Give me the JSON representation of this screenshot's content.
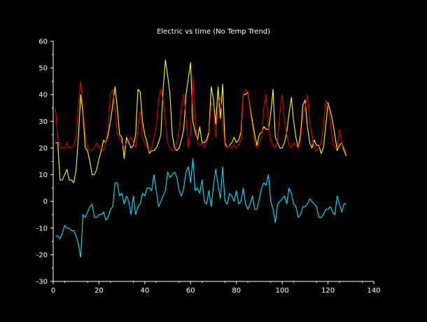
{
  "chart_data": {
    "type": "line",
    "title": "Electric vs time (No Temp Trend)",
    "xlabel": "",
    "ylabel": "",
    "xlim": [
      0,
      140
    ],
    "ylim": [
      -30,
      60
    ],
    "x_ticks": [
      0,
      20,
      40,
      60,
      80,
      100,
      120,
      140
    ],
    "y_ticks": [
      -30,
      -20,
      -10,
      0,
      10,
      20,
      30,
      40,
      50,
      60
    ],
    "grid": false,
    "background_color": "#000000",
    "axis_color": "#ffffff",
    "x": [
      1,
      2,
      3,
      4,
      5,
      6,
      7,
      8,
      9,
      10,
      11,
      12,
      13,
      14,
      15,
      16,
      17,
      18,
      19,
      20,
      21,
      22,
      23,
      24,
      25,
      26,
      27,
      28,
      29,
      30,
      31,
      32,
      33,
      34,
      35,
      36,
      37,
      38,
      39,
      40,
      41,
      42,
      43,
      44,
      45,
      46,
      47,
      48,
      49,
      50,
      51,
      52,
      53,
      54,
      55,
      56,
      57,
      58,
      59,
      60,
      61,
      62,
      63,
      64,
      65,
      66,
      67,
      68,
      69,
      70,
      71,
      72,
      73,
      74,
      75,
      76,
      77,
      78,
      79,
      80,
      81,
      82,
      83,
      84,
      85,
      86,
      87,
      88,
      89,
      90,
      91,
      92,
      93,
      94,
      95,
      96,
      97,
      98,
      99,
      100,
      101,
      102,
      103,
      104,
      105,
      106,
      107,
      108,
      109,
      110,
      111,
      112,
      113,
      114,
      115,
      116,
      117,
      118,
      119,
      120,
      121,
      122,
      123,
      124,
      125,
      126,
      127,
      128
    ],
    "series": [
      {
        "color": "#ffff00",
        "values": [
          22,
          22,
          8,
          8,
          10,
          12,
          8,
          8,
          7,
          12,
          24,
          40,
          33,
          20,
          19,
          15,
          10,
          10,
          12,
          16,
          19,
          23,
          22,
          25,
          30,
          36,
          43,
          35,
          25,
          24,
          16,
          24,
          22,
          20,
          21,
          25,
          42,
          41,
          30,
          25,
          22,
          18,
          19,
          19,
          20,
          22,
          25,
          42,
          53,
          47,
          40,
          25,
          20,
          19,
          20,
          23,
          27,
          40,
          46,
          52,
          30,
          26,
          23,
          28,
          22,
          22,
          23,
          26,
          43,
          38,
          29,
          43,
          31,
          44,
          22,
          20,
          21,
          22,
          24,
          22,
          23,
          26,
          40,
          40,
          41,
          35,
          30,
          25,
          21,
          25,
          26,
          28,
          27,
          27,
          33,
          42,
          24,
          22,
          20,
          20,
          22,
          26,
          33,
          39,
          30,
          24,
          20,
          25,
          36,
          38,
          28,
          22,
          20,
          23,
          21,
          21,
          18,
          20,
          28,
          37,
          34,
          30,
          25,
          19,
          21,
          22,
          19,
          17
        ]
      },
      {
        "color": "#dd0000",
        "values": [
          35,
          24,
          20,
          20,
          20,
          22,
          20,
          20,
          21,
          24,
          36,
          45,
          35,
          25,
          20,
          19,
          19,
          20,
          22,
          20,
          20,
          19,
          22,
          28,
          40,
          42,
          35,
          25,
          24,
          22,
          20,
          22,
          23,
          24,
          22,
          20,
          27,
          34,
          24,
          22,
          20,
          19,
          20,
          24,
          28,
          38,
          42,
          38,
          30,
          22,
          20,
          19,
          19,
          22,
          27,
          35,
          40,
          32,
          20,
          25,
          47,
          30,
          22,
          21,
          22,
          20,
          22,
          25,
          37,
          36,
          24,
          36,
          39,
          30,
          21,
          20,
          21,
          20,
          21,
          20,
          21,
          23,
          40,
          42,
          41,
          34,
          28,
          22,
          20,
          22,
          24,
          35,
          40,
          28,
          23,
          21,
          20,
          23,
          33,
          40,
          30,
          25,
          21,
          20,
          22,
          21,
          20,
          23,
          32,
          35,
          40,
          30,
          25,
          20,
          19,
          20,
          22,
          28,
          38,
          36,
          30,
          22,
          20,
          20,
          27,
          22,
          20,
          18
        ]
      },
      {
        "color": "#00e5ff",
        "values": [
          -13,
          -13,
          -14,
          -12,
          -9,
          -10,
          -10,
          -11,
          -11,
          -13,
          -16,
          -21,
          -5,
          -6,
          -4,
          -2,
          -1,
          -6,
          -6,
          -5,
          -5,
          -4,
          -7,
          -6,
          -3,
          -2,
          7,
          7,
          2,
          3,
          -1,
          2,
          0,
          -5,
          2,
          -5,
          -2,
          -1,
          3,
          2,
          5,
          5,
          4,
          10,
          4,
          -2,
          0,
          2,
          4,
          11,
          9,
          10,
          11,
          9,
          4,
          2,
          5,
          11,
          13,
          7,
          16,
          4,
          5,
          3,
          8,
          0,
          -1,
          4,
          -2,
          6,
          12,
          6,
          1,
          13,
          0,
          -1,
          3,
          2,
          0,
          4,
          -1,
          0,
          5,
          -1,
          -3,
          -1,
          2,
          -3,
          -3,
          1,
          5,
          7,
          6,
          10,
          0,
          -3,
          -8,
          -1,
          0,
          1,
          2,
          -1,
          5,
          3,
          -1,
          -2,
          -6,
          -5,
          -2,
          -2,
          -1,
          1,
          0,
          -1,
          -2,
          -6,
          -6,
          -5,
          -3,
          -3,
          -2,
          -4,
          -5,
          2,
          -1,
          -4,
          -1,
          -1
        ]
      }
    ]
  }
}
